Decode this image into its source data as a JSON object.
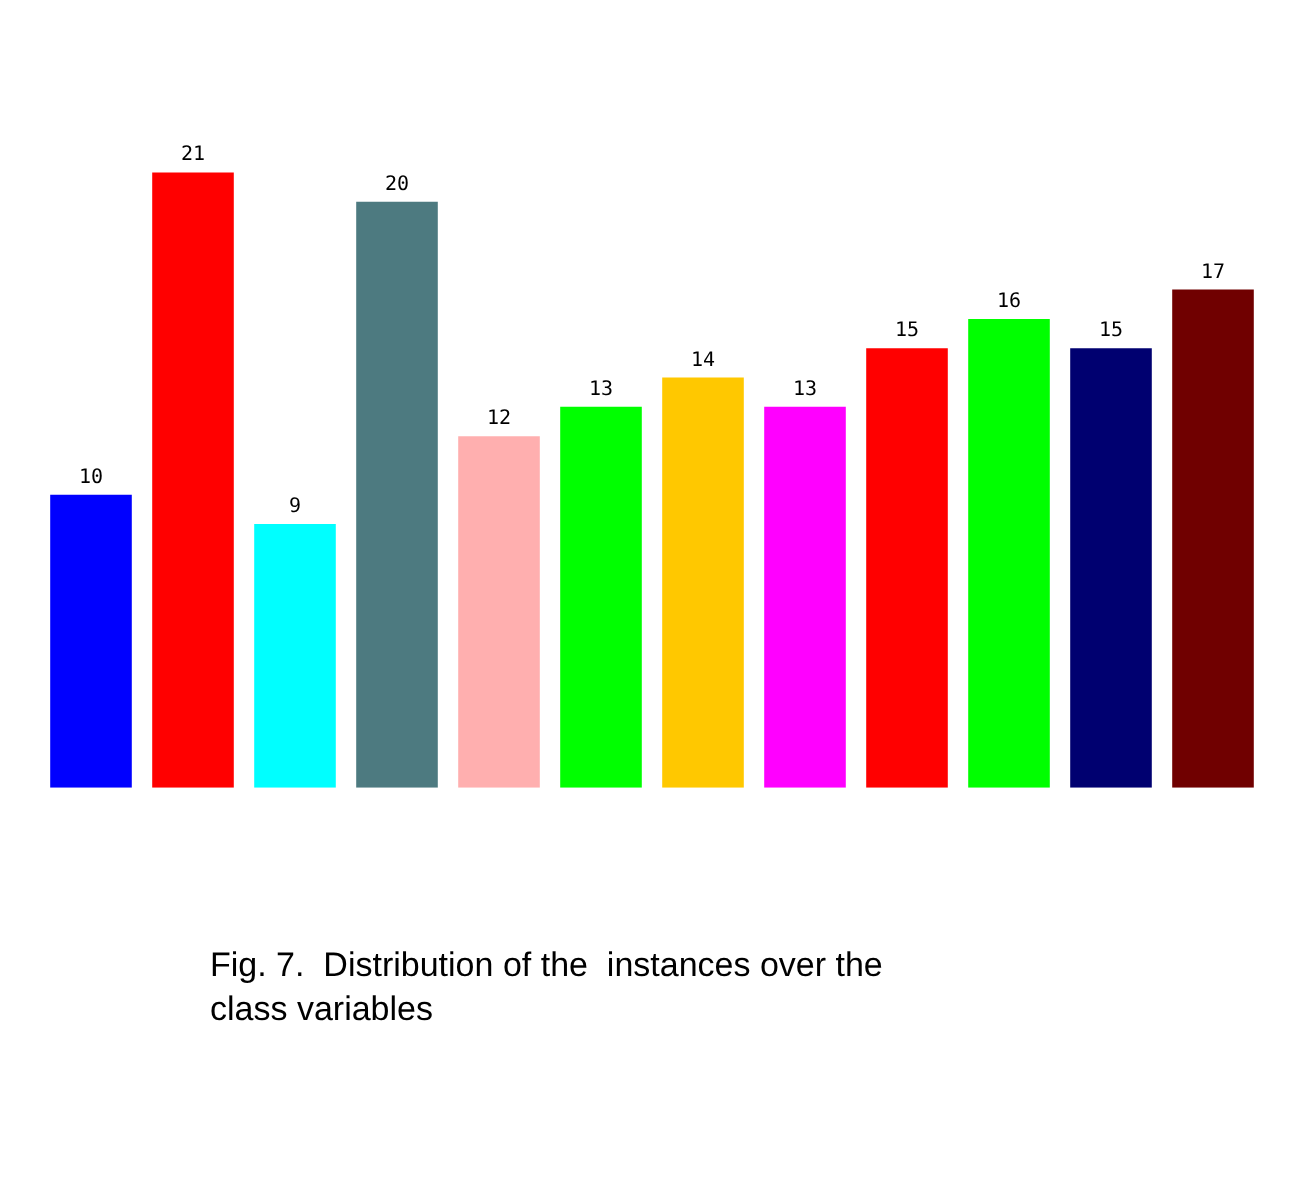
{
  "chart_data": {
    "type": "bar",
    "categories": [
      null,
      null,
      null,
      null,
      null,
      null,
      null,
      null,
      null,
      null,
      null,
      null
    ],
    "values": [
      10,
      21,
      9,
      20,
      12,
      13,
      14,
      13,
      15,
      16,
      15,
      17
    ],
    "colors": [
      "#0000ff",
      "#ff0000",
      "#00ffff",
      "#4d7a80",
      "#ffafaf",
      "#00ff00",
      "#ffc800",
      "#ff00ff",
      "#ff0000",
      "#00ff00",
      "#000070",
      "#700000"
    ],
    "data_labels": true,
    "annotations": [
      "Fig. 7.  Distribution of the  instances over the\nclass variables"
    ]
  }
}
